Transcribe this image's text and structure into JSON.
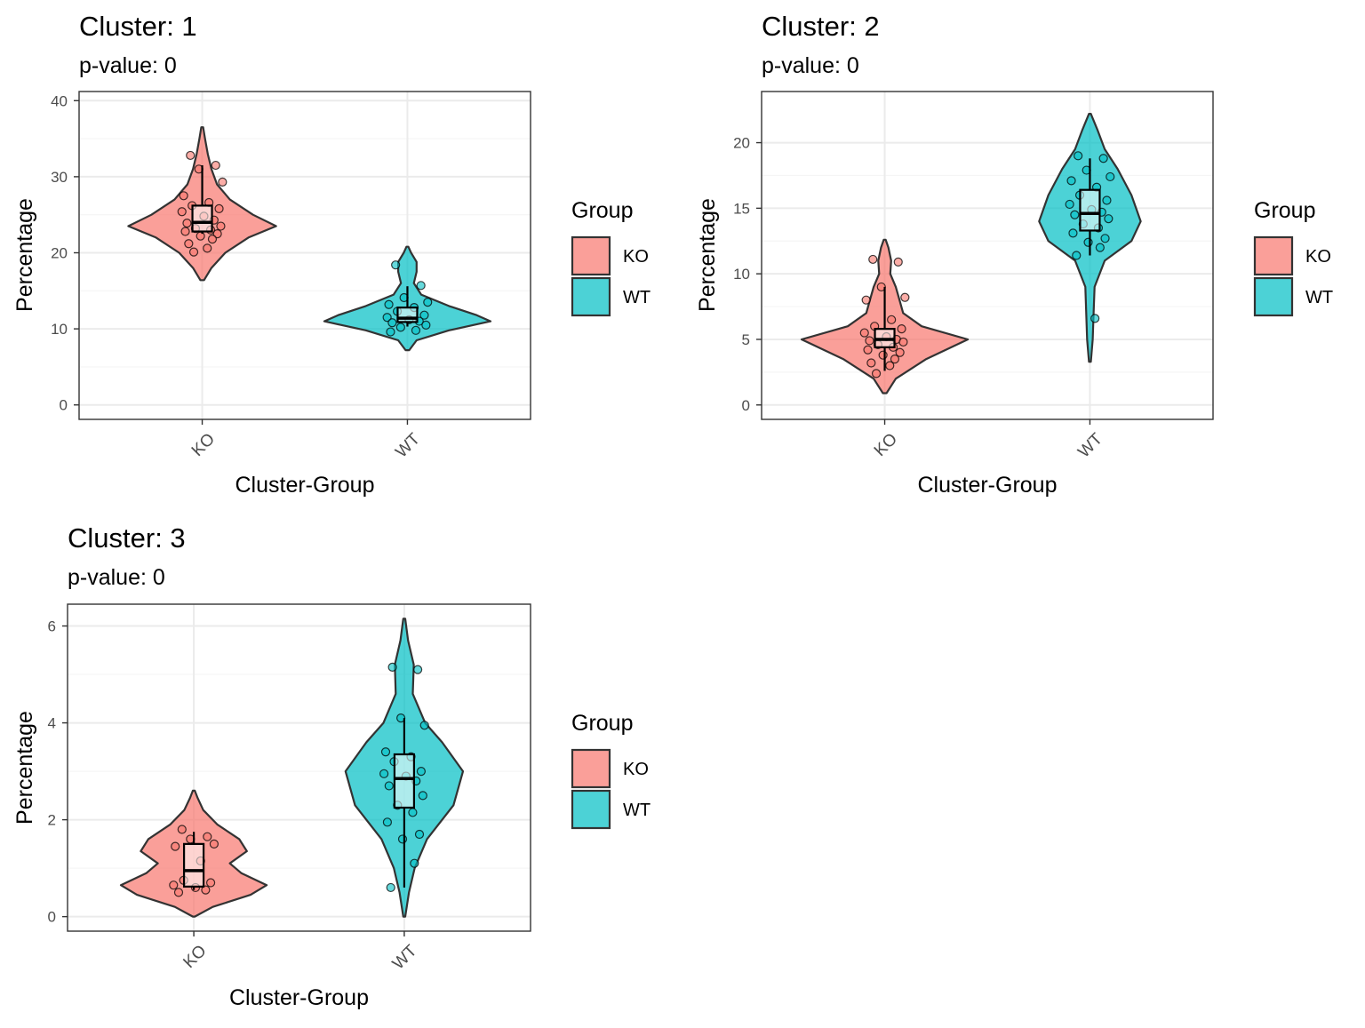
{
  "colors": {
    "KO": "#F8766D",
    "WT": "#00BFC4",
    "outline": "#333333",
    "grid_major": "#EBEBEB",
    "grid_minor": "#F5F5F5",
    "text": "#000000",
    "tick_text": "#4D4D4D"
  },
  "chart_data": [
    {
      "type": "violin",
      "title": "Cluster: 1",
      "subtitle": "p-value: 0",
      "xlabel": "Cluster-Group",
      "ylabel": "Percentage",
      "categories": [
        "KO",
        "WT"
      ],
      "ylim": [
        -1.9,
        41.2
      ],
      "yticks": [
        0,
        10,
        20,
        30,
        40
      ],
      "grid": true,
      "legend": {
        "title": "Group",
        "position": "right",
        "entries": [
          "KO",
          "WT"
        ]
      },
      "series": [
        {
          "category": "KO",
          "values": [
            32.8,
            31.5,
            31.0,
            29.3,
            27.5,
            26.6,
            26.2,
            25.8,
            25.4,
            24.8,
            24.3,
            23.9,
            23.5,
            23.2,
            23.0,
            22.8,
            22.5,
            22.2,
            21.8,
            21.2,
            20.6,
            20.1
          ],
          "box": {
            "min": 22.5,
            "q1": 22.8,
            "median": 24.0,
            "q3": 26.2,
            "max": 31.5
          },
          "density": [
            [
              16.4,
              0.02
            ],
            [
              18,
              0.1
            ],
            [
              20,
              0.25
            ],
            [
              22,
              0.5
            ],
            [
              23.5,
              0.8
            ],
            [
              25,
              0.55
            ],
            [
              27,
              0.3
            ],
            [
              29,
              0.16
            ],
            [
              31,
              0.1
            ],
            [
              33,
              0.06
            ],
            [
              35,
              0.03
            ],
            [
              36.5,
              0.01
            ]
          ]
        },
        {
          "category": "WT",
          "values": [
            18.4,
            15.7,
            14.1,
            13.5,
            13.2,
            12.8,
            12.3,
            11.8,
            11.5,
            11.2,
            11.0,
            10.8,
            10.5,
            10.2,
            9.8,
            9.6
          ],
          "box": {
            "min": 10.3,
            "q1": 10.9,
            "median": 11.4,
            "q3": 12.8,
            "max": 15.6
          },
          "density": [
            [
              7.2,
              0.02
            ],
            [
              8.5,
              0.1
            ],
            [
              9.8,
              0.45
            ],
            [
              11,
              0.9
            ],
            [
              11.8,
              0.75
            ],
            [
              13,
              0.45
            ],
            [
              14.5,
              0.15
            ],
            [
              16,
              0.07
            ],
            [
              17.5,
              0.1
            ],
            [
              18.8,
              0.1
            ],
            [
              20,
              0.04
            ],
            [
              20.8,
              0.01
            ]
          ]
        }
      ]
    },
    {
      "type": "violin",
      "title": "Cluster: 2",
      "subtitle": "p-value: 0",
      "xlabel": "Cluster-Group",
      "ylabel": "Percentage",
      "categories": [
        "KO",
        "WT"
      ],
      "ylim": [
        -1.1,
        23.9
      ],
      "yticks": [
        0,
        5,
        10,
        15,
        20
      ],
      "grid": true,
      "legend": {
        "title": "Group",
        "position": "right",
        "entries": [
          "KO",
          "WT"
        ]
      },
      "series": [
        {
          "category": "KO",
          "values": [
            11.1,
            10.9,
            9.0,
            8.2,
            8.0,
            6.5,
            6.0,
            5.8,
            5.5,
            5.2,
            5.0,
            4.9,
            4.8,
            4.6,
            4.4,
            4.2,
            4.0,
            3.8,
            3.5,
            3.2,
            3.0,
            2.4
          ],
          "box": {
            "min": 2.6,
            "q1": 4.4,
            "median": 5.0,
            "q3": 5.8,
            "max": 9.0
          },
          "density": [
            [
              0.9,
              0.02
            ],
            [
              2,
              0.12
            ],
            [
              3.5,
              0.45
            ],
            [
              5,
              0.9
            ],
            [
              6,
              0.4
            ],
            [
              7,
              0.2
            ],
            [
              8,
              0.16
            ],
            [
              9,
              0.12
            ],
            [
              10,
              0.06
            ],
            [
              11,
              0.07
            ],
            [
              12,
              0.04
            ],
            [
              12.6,
              0.01
            ]
          ]
        },
        {
          "category": "WT",
          "values": [
            19.0,
            18.8,
            17.9,
            17.4,
            17.1,
            16.6,
            16.0,
            15.6,
            15.3,
            14.9,
            14.7,
            14.5,
            14.2,
            13.8,
            13.5,
            13.1,
            12.7,
            12.4,
            12.0,
            11.4,
            6.6
          ],
          "box": {
            "min": 11.4,
            "q1": 13.3,
            "median": 14.6,
            "q3": 16.4,
            "max": 18.8
          },
          "density": [
            [
              3.3,
              0.01
            ],
            [
              5,
              0.03
            ],
            [
              7,
              0.04
            ],
            [
              9,
              0.05
            ],
            [
              11,
              0.16
            ],
            [
              12.5,
              0.45
            ],
            [
              14,
              0.55
            ],
            [
              16,
              0.45
            ],
            [
              18,
              0.3
            ],
            [
              19.5,
              0.16
            ],
            [
              21,
              0.08
            ],
            [
              22.2,
              0.01
            ]
          ]
        }
      ]
    },
    {
      "type": "violin",
      "title": "Cluster: 3",
      "subtitle": "p-value: 0",
      "xlabel": "Cluster-Group",
      "ylabel": "Percentage",
      "categories": [
        "KO",
        "WT"
      ],
      "ylim": [
        -0.3,
        6.45
      ],
      "yticks": [
        0,
        2,
        4,
        6
      ],
      "grid": true,
      "legend": {
        "title": "Group",
        "position": "right",
        "entries": [
          "KO",
          "WT"
        ]
      },
      "series": [
        {
          "category": "KO",
          "values": [
            1.8,
            1.65,
            1.6,
            1.5,
            1.45,
            1.15,
            0.75,
            0.7,
            0.65,
            0.6,
            0.55,
            0.5
          ],
          "box": {
            "min": 0.55,
            "q1": 0.62,
            "median": 0.95,
            "q3": 1.5,
            "max": 1.75
          },
          "density": [
            [
              0,
              0.01
            ],
            [
              0.2,
              0.2
            ],
            [
              0.45,
              0.6
            ],
            [
              0.65,
              0.77
            ],
            [
              0.9,
              0.5
            ],
            [
              1.1,
              0.38
            ],
            [
              1.35,
              0.56
            ],
            [
              1.6,
              0.48
            ],
            [
              1.9,
              0.25
            ],
            [
              2.2,
              0.1
            ],
            [
              2.45,
              0.04
            ],
            [
              2.6,
              0.01
            ]
          ]
        },
        {
          "category": "WT",
          "values": [
            5.15,
            5.1,
            4.1,
            3.95,
            3.4,
            3.3,
            3.2,
            3.0,
            2.95,
            2.9,
            2.8,
            2.7,
            2.5,
            2.3,
            2.15,
            1.95,
            1.7,
            1.6,
            1.1,
            0.6
          ],
          "box": {
            "min": 0.6,
            "q1": 2.25,
            "median": 2.85,
            "q3": 3.35,
            "max": 4.1
          },
          "density": [
            [
              0,
              0.01
            ],
            [
              0.5,
              0.05
            ],
            [
              1,
              0.11
            ],
            [
              1.6,
              0.24
            ],
            [
              2.3,
              0.52
            ],
            [
              3,
              0.62
            ],
            [
              3.6,
              0.4
            ],
            [
              4,
              0.22
            ],
            [
              4.6,
              0.09
            ],
            [
              5.2,
              0.1
            ],
            [
              5.7,
              0.04
            ],
            [
              6.15,
              0.01
            ]
          ]
        }
      ]
    }
  ]
}
